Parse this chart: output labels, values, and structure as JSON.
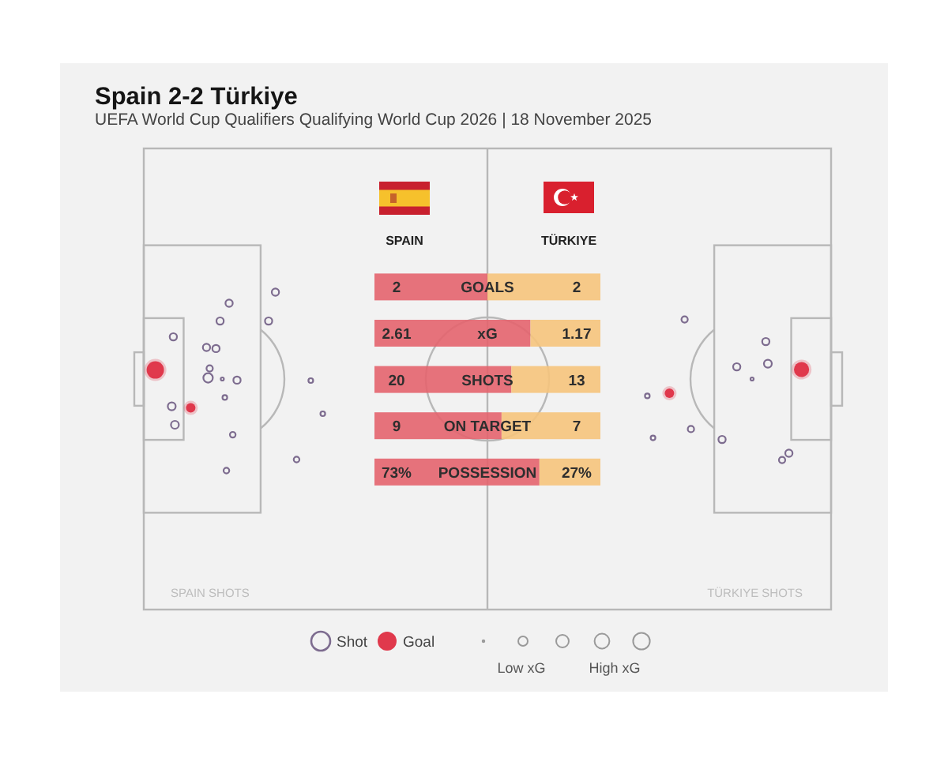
{
  "chart_data": [
    {
      "type": "bar",
      "orientation": "horizontal",
      "stacked": true,
      "title": "Spain 2-2 Türkiye",
      "subtitle": "UEFA World Cup Qualifiers Qualifying World Cup 2026 | 18 November 2025",
      "categories": [
        "GOALS"
      ],
      "xlim": [
        0,
        4
      ],
      "data_labels": true,
      "series": [
        {
          "name": "SPAIN",
          "color": "#e4646e",
          "values": [
            2
          ]
        },
        {
          "name": "TÜRKIYE",
          "color": "#f6c47c",
          "values": [
            2
          ]
        }
      ]
    },
    {
      "type": "bar",
      "orientation": "horizontal",
      "stacked": true,
      "categories": [
        "xG"
      ],
      "xlim": [
        0,
        3.78
      ],
      "data_labels": true,
      "series": [
        {
          "color": "#e4646e",
          "values": [
            2.61
          ]
        },
        {
          "color": "#f6c47c",
          "values": [
            1.17
          ]
        }
      ]
    },
    {
      "type": "bar",
      "orientation": "horizontal",
      "stacked": true,
      "categories": [
        "SHOTS"
      ],
      "xlim": [
        0,
        33
      ],
      "data_labels": true,
      "series": [
        {
          "color": "#e4646e",
          "values": [
            20
          ]
        },
        {
          "color": "#f6c47c",
          "values": [
            13
          ]
        }
      ]
    },
    {
      "type": "bar",
      "orientation": "horizontal",
      "stacked": true,
      "categories": [
        "ON TARGET"
      ],
      "xlim": [
        0,
        16
      ],
      "data_labels": true,
      "series": [
        {
          "color": "#e4646e",
          "values": [
            9
          ]
        },
        {
          "color": "#f6c47c",
          "values": [
            7
          ]
        }
      ]
    },
    {
      "type": "bar",
      "orientation": "horizontal",
      "stacked": true,
      "categories": [
        "POSSESSION"
      ],
      "xlim": [
        0,
        100
      ],
      "series": [
        {
          "color": "#e4646e",
          "values": [
            73
          ],
          "value_labels": [
            "73%"
          ]
        },
        {
          "color": "#f6c47c",
          "values": [
            27
          ],
          "value_labels": [
            "27%"
          ]
        }
      ]
    },
    {
      "type": "other",
      "legend": "bottom",
      "annotations": [
        "SPAIN SHOTS",
        "TÜRKIYE SHOTS",
        "Low xG",
        "High xG"
      ],
      "series": [
        {
          "name": "Shot",
          "color": "#7d6c8f"
        },
        {
          "name": "Goal",
          "color": "#e0394c"
        }
      ]
    }
  ]
}
